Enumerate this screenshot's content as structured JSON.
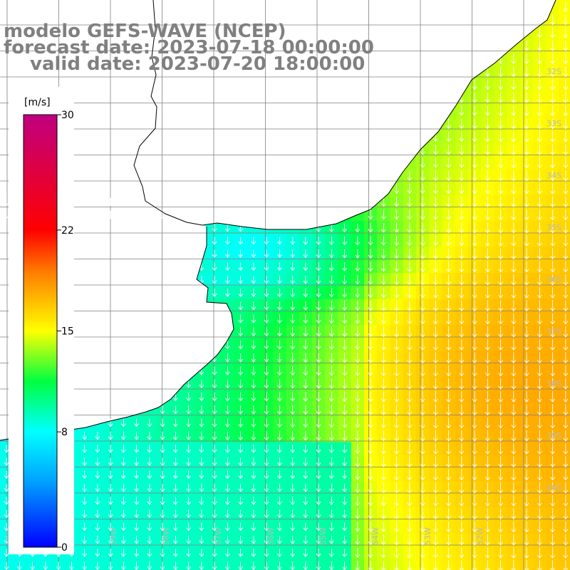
{
  "title": {
    "line1": "modelo GEFS-WAVE (NCEP)",
    "line2": "forecast date: 2023-07-18 00:00:00",
    "line3": "valid date: 2023-07-20 18:00:00"
  },
  "colorbar": {
    "unit": "[m/s]",
    "ticks": [
      {
        "value": 30,
        "label": "30"
      },
      {
        "value": 22,
        "label": "22"
      },
      {
        "value": 15,
        "label": "15"
      },
      {
        "value": 8,
        "label": "8"
      },
      {
        "value": 0,
        "label": "0"
      }
    ],
    "range": [
      0,
      30
    ],
    "colors": [
      "#0000ff",
      "#00a0ff",
      "#00ffff",
      "#00ff40",
      "#ffff00",
      "#ff8000",
      "#ff0000",
      "#c00080"
    ]
  },
  "map": {
    "variable": "wind speed",
    "land_color": "#ffffff",
    "grid_color": "#808080",
    "arrow_color": "#ffffff",
    "arrow_direction": "south",
    "lat_labels": [
      "32S",
      "33S",
      "34S",
      "35S",
      "36S",
      "37S",
      "38S",
      "39S",
      "40S"
    ],
    "lon_labels": [
      "61W",
      "60W",
      "59W",
      "58W",
      "57W",
      "56W",
      "55W",
      "54W",
      "53W",
      "52W"
    ]
  }
}
